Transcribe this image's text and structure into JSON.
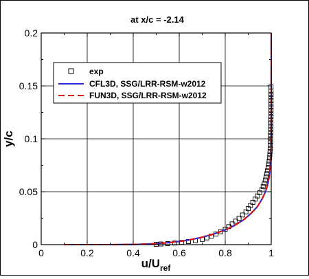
{
  "chart_data": {
    "type": "line",
    "title": "at x/c = -2.14",
    "xlabel_main": "u/U",
    "xlabel_sub": "ref",
    "ylabel": "y/c",
    "xlim": [
      0,
      1
    ],
    "ylim": [
      0,
      0.2
    ],
    "xticks": [
      0,
      0.2,
      0.4,
      0.6,
      0.8,
      1
    ],
    "xtick_labels": [
      "0",
      "0.2",
      "0.4",
      "0.6",
      "0.8",
      "1"
    ],
    "yticks": [
      0,
      0.05,
      0.1,
      0.15,
      0.2
    ],
    "ytick_labels": [
      "0",
      "0.05",
      "0.1",
      "0.15",
      "0.2"
    ],
    "grid": true,
    "legend_position": "upper-left",
    "series": [
      {
        "name": "exp",
        "kind": "markers",
        "marker": "square",
        "color": "#000000",
        "x": [
          0.5,
          0.52,
          0.55,
          0.58,
          0.61,
          0.64,
          0.67,
          0.7,
          0.72,
          0.74,
          0.76,
          0.78,
          0.8,
          0.815,
          0.83,
          0.845,
          0.86,
          0.875,
          0.89,
          0.9,
          0.91,
          0.92,
          0.93,
          0.94,
          0.95,
          0.96,
          0.965,
          0.97,
          0.975,
          0.978,
          0.981,
          0.984,
          0.987,
          0.989,
          0.991,
          0.993,
          0.994,
          0.995,
          0.996,
          0.996,
          0.997,
          0.997,
          0.997,
          0.998,
          0.998,
          0.998,
          0.998,
          0.998,
          0.999,
          0.999,
          0.999,
          0.999,
          0.999,
          0.999,
          0.999,
          0.999,
          0.999,
          0.999
        ],
        "y": [
          0.0003,
          0.0006,
          0.001,
          0.0015,
          0.0021,
          0.0029,
          0.0038,
          0.005,
          0.0064,
          0.008,
          0.01,
          0.0122,
          0.0146,
          0.017,
          0.0196,
          0.0222,
          0.025,
          0.028,
          0.031,
          0.034,
          0.037,
          0.04,
          0.043,
          0.046,
          0.049,
          0.052,
          0.055,
          0.058,
          0.061,
          0.064,
          0.067,
          0.07,
          0.073,
          0.076,
          0.079,
          0.082,
          0.085,
          0.088,
          0.091,
          0.094,
          0.097,
          0.1,
          0.103,
          0.106,
          0.109,
          0.112,
          0.115,
          0.118,
          0.121,
          0.124,
          0.127,
          0.13,
          0.133,
          0.136,
          0.139,
          0.142,
          0.145,
          0.149
        ]
      },
      {
        "name": "CFL3D, SSG/LRR-RSM-w2012",
        "kind": "line",
        "dash": "solid",
        "color": "#2a2ad8",
        "x": [
          0.1,
          0.3,
          0.4,
          0.45,
          0.5,
          0.55,
          0.6,
          0.65,
          0.7,
          0.75,
          0.8,
          0.84,
          0.88,
          0.91,
          0.94,
          0.96,
          0.975,
          0.985,
          0.991,
          0.995,
          0.998,
          0.9995,
          1.0,
          1.0,
          1.0,
          1.0
        ],
        "y": [
          0.0,
          0.0,
          0.0002,
          0.0005,
          0.001,
          0.0018,
          0.003,
          0.0047,
          0.007,
          0.01,
          0.014,
          0.018,
          0.0235,
          0.029,
          0.036,
          0.043,
          0.05,
          0.057,
          0.064,
          0.072,
          0.085,
          0.1,
          0.12,
          0.15,
          0.18,
          0.2
        ]
      },
      {
        "name": "FUN3D, SSG/LRR-RSM-w2012",
        "kind": "line",
        "dash": "dashed",
        "color": "#e01010",
        "x": [
          0.1,
          0.3,
          0.4,
          0.45,
          0.5,
          0.55,
          0.6,
          0.65,
          0.7,
          0.75,
          0.8,
          0.84,
          0.88,
          0.91,
          0.94,
          0.96,
          0.975,
          0.985,
          0.991,
          0.995,
          0.998,
          0.9995,
          1.0,
          1.0,
          1.0,
          1.0
        ],
        "y": [
          0.0,
          0.0,
          0.0002,
          0.0005,
          0.001,
          0.0018,
          0.003,
          0.0047,
          0.007,
          0.01,
          0.014,
          0.018,
          0.0235,
          0.029,
          0.036,
          0.043,
          0.05,
          0.057,
          0.064,
          0.072,
          0.085,
          0.1,
          0.12,
          0.15,
          0.18,
          0.2
        ]
      }
    ]
  }
}
